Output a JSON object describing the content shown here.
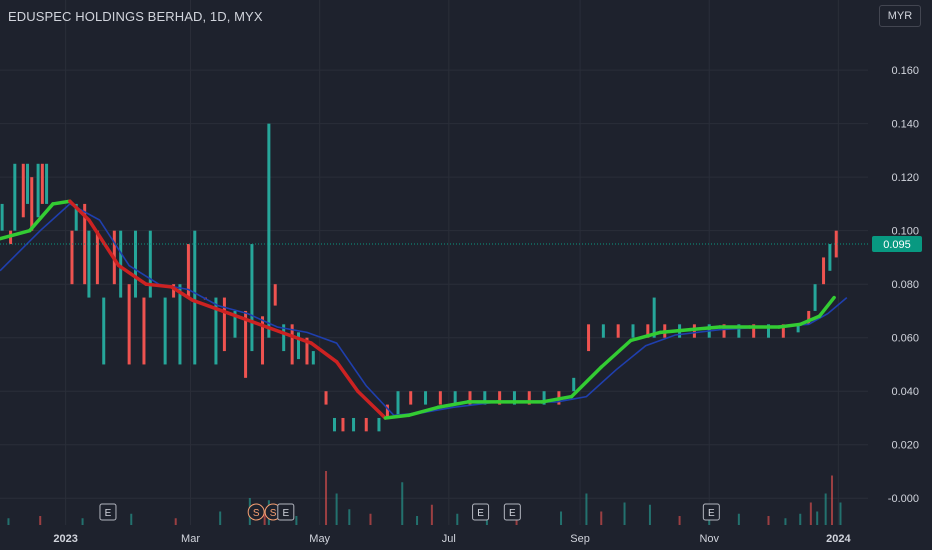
{
  "header": {
    "title": "EDUSPEC HOLDINGS BERHAD, 1D, MYX",
    "currency": "MYR"
  },
  "colors": {
    "background": "#1e222d",
    "grid": "#2a2e39",
    "up": "#26a69a",
    "down": "#ef5350",
    "ma_up": "#33cc33",
    "ma_down": "#cc2222",
    "signal": "#1f3fae",
    "price_badge": "#089981",
    "axis_text": "#d1d4dc"
  },
  "chart_data": {
    "type": "line",
    "title": "EDUSPEC HOLDINGS BERHAD, 1D, MYX",
    "x_axis": {
      "ticks": [
        "2023",
        "Mar",
        "May",
        "Jul",
        "Sep",
        "Nov",
        "2024"
      ],
      "range": [
        "2022-12-01",
        "2024-01-15"
      ]
    },
    "y_axis": {
      "ticks": [
        "0.160",
        "0.140",
        "0.120",
        "0.100",
        "0.080",
        "0.060",
        "0.040",
        "0.020",
        "-0.000"
      ],
      "range": [
        -0.01,
        0.175
      ],
      "position": "right"
    },
    "last_price": "0.095",
    "series": [
      {
        "role": "moving_average",
        "color_rule": "green rising, red falling",
        "points": [
          [
            "2022-12-01",
            0.097
          ],
          [
            "2022-12-15",
            0.1
          ],
          [
            "2022-12-26",
            0.11
          ],
          [
            "2023-01-03",
            0.111
          ],
          [
            "2023-01-12",
            0.104
          ],
          [
            "2023-01-26",
            0.087
          ],
          [
            "2023-02-08",
            0.08
          ],
          [
            "2023-02-20",
            0.079
          ],
          [
            "2023-03-02",
            0.074
          ],
          [
            "2023-03-16",
            0.07
          ],
          [
            "2023-03-30",
            0.066
          ],
          [
            "2023-04-13",
            0.062
          ],
          [
            "2023-04-27",
            0.058
          ],
          [
            "2023-05-09",
            0.051
          ],
          [
            "2023-05-19",
            0.04
          ],
          [
            "2023-06-01",
            0.03
          ],
          [
            "2023-06-12",
            0.031
          ],
          [
            "2023-06-26",
            0.034
          ],
          [
            "2023-07-10",
            0.036
          ],
          [
            "2023-07-24",
            0.036
          ],
          [
            "2023-08-14",
            0.036
          ],
          [
            "2023-08-28",
            0.038
          ],
          [
            "2023-09-11",
            0.049
          ],
          [
            "2023-09-25",
            0.059
          ],
          [
            "2023-10-09",
            0.062
          ],
          [
            "2023-10-23",
            0.063
          ],
          [
            "2023-11-06",
            0.064
          ],
          [
            "2023-11-20",
            0.064
          ],
          [
            "2023-12-04",
            0.064
          ],
          [
            "2023-12-14",
            0.065
          ],
          [
            "2023-12-23",
            0.068
          ],
          [
            "2023-12-30",
            0.075
          ]
        ]
      },
      {
        "role": "signal_line",
        "color": "#1f3fae",
        "points": [
          [
            "2022-12-01",
            0.085
          ],
          [
            "2022-12-20",
            0.1
          ],
          [
            "2023-01-03",
            0.11
          ],
          [
            "2023-01-17",
            0.104
          ],
          [
            "2023-01-31",
            0.087
          ],
          [
            "2023-02-14",
            0.08
          ],
          [
            "2023-02-28",
            0.078
          ],
          [
            "2023-03-14",
            0.072
          ],
          [
            "2023-03-28",
            0.069
          ],
          [
            "2023-04-11",
            0.064
          ],
          [
            "2023-04-25",
            0.062
          ],
          [
            "2023-05-09",
            0.058
          ],
          [
            "2023-05-23",
            0.042
          ],
          [
            "2023-06-05",
            0.031
          ],
          [
            "2023-06-19",
            0.032
          ],
          [
            "2023-07-03",
            0.034
          ],
          [
            "2023-07-24",
            0.036
          ],
          [
            "2023-08-21",
            0.036
          ],
          [
            "2023-09-04",
            0.038
          ],
          [
            "2023-09-18",
            0.048
          ],
          [
            "2023-10-02",
            0.057
          ],
          [
            "2023-10-16",
            0.061
          ],
          [
            "2023-11-06",
            0.063
          ],
          [
            "2023-11-27",
            0.064
          ],
          [
            "2023-12-18",
            0.065
          ],
          [
            "2023-12-27",
            0.069
          ],
          [
            "2024-01-05",
            0.075
          ]
        ]
      }
    ],
    "price_bars": [
      [
        "2022-12-02",
        0.1,
        0.11
      ],
      [
        "2022-12-06",
        0.095,
        0.1
      ],
      [
        "2022-12-08",
        0.1,
        0.125
      ],
      [
        "2022-12-12",
        0.105,
        0.125
      ],
      [
        "2022-12-14",
        0.11,
        0.125
      ],
      [
        "2022-12-16",
        0.1,
        0.12
      ],
      [
        "2022-12-19",
        0.105,
        0.125
      ],
      [
        "2022-12-21",
        0.11,
        0.125
      ],
      [
        "2022-12-23",
        0.11,
        0.125
      ],
      [
        "2023-01-04",
        0.08,
        0.1
      ],
      [
        "2023-01-06",
        0.1,
        0.11
      ],
      [
        "2023-01-10",
        0.08,
        0.11
      ],
      [
        "2023-01-12",
        0.075,
        0.1
      ],
      [
        "2023-01-16",
        0.08,
        0.1
      ],
      [
        "2023-01-19",
        0.05,
        0.075
      ],
      [
        "2023-01-24",
        0.08,
        0.1
      ],
      [
        "2023-01-27",
        0.075,
        0.1
      ],
      [
        "2023-01-31",
        0.05,
        0.08
      ],
      [
        "2023-02-03",
        0.075,
        0.1
      ],
      [
        "2023-02-07",
        0.05,
        0.075
      ],
      [
        "2023-02-10",
        0.075,
        0.1
      ],
      [
        "2023-02-14",
        0.08,
        0.08
      ],
      [
        "2023-02-17",
        0.05,
        0.075
      ],
      [
        "2023-02-21",
        0.075,
        0.08
      ],
      [
        "2023-02-24",
        0.05,
        0.08
      ],
      [
        "2023-02-28",
        0.075,
        0.095
      ],
      [
        "2023-03-03",
        0.05,
        0.1
      ],
      [
        "2023-03-08",
        0.075,
        0.075
      ],
      [
        "2023-03-13",
        0.05,
        0.075
      ],
      [
        "2023-03-17",
        0.055,
        0.075
      ],
      [
        "2023-03-22",
        0.06,
        0.07
      ],
      [
        "2023-03-27",
        0.045,
        0.07
      ],
      [
        "2023-03-30",
        0.055,
        0.095
      ],
      [
        "2023-04-04",
        0.05,
        0.068
      ],
      [
        "2023-04-07",
        0.06,
        0.14
      ],
      [
        "2023-04-10",
        0.072,
        0.08
      ],
      [
        "2023-04-14",
        0.055,
        0.065
      ],
      [
        "2023-04-18",
        0.05,
        0.065
      ],
      [
        "2023-04-21",
        0.052,
        0.062
      ],
      [
        "2023-04-25",
        0.05,
        0.06
      ],
      [
        "2023-04-28",
        0.05,
        0.055
      ],
      [
        "2023-05-04",
        0.035,
        0.04
      ],
      [
        "2023-05-08",
        0.025,
        0.03
      ],
      [
        "2023-05-12",
        0.025,
        0.03
      ],
      [
        "2023-05-17",
        0.025,
        0.03
      ],
      [
        "2023-05-23",
        0.025,
        0.03
      ],
      [
        "2023-05-29",
        0.025,
        0.03
      ],
      [
        "2023-06-02",
        0.03,
        0.035
      ],
      [
        "2023-06-07",
        0.03,
        0.04
      ],
      [
        "2023-06-13",
        0.035,
        0.04
      ],
      [
        "2023-06-20",
        0.035,
        0.04
      ],
      [
        "2023-06-27",
        0.035,
        0.04
      ],
      [
        "2023-07-04",
        0.035,
        0.04
      ],
      [
        "2023-07-11",
        0.035,
        0.04
      ],
      [
        "2023-07-18",
        0.035,
        0.04
      ],
      [
        "2023-07-25",
        0.035,
        0.04
      ],
      [
        "2023-08-01",
        0.035,
        0.04
      ],
      [
        "2023-08-08",
        0.035,
        0.04
      ],
      [
        "2023-08-15",
        0.035,
        0.04
      ],
      [
        "2023-08-22",
        0.035,
        0.04
      ],
      [
        "2023-08-29",
        0.04,
        0.045
      ],
      [
        "2023-09-05",
        0.055,
        0.065
      ],
      [
        "2023-09-12",
        0.06,
        0.065
      ],
      [
        "2023-09-19",
        0.06,
        0.065
      ],
      [
        "2023-09-26",
        0.06,
        0.065
      ],
      [
        "2023-10-03",
        0.06,
        0.065
      ],
      [
        "2023-10-06",
        0.06,
        0.075
      ],
      [
        "2023-10-11",
        0.06,
        0.065
      ],
      [
        "2023-10-18",
        0.06,
        0.065
      ],
      [
        "2023-10-25",
        0.06,
        0.065
      ],
      [
        "2023-11-01",
        0.06,
        0.065
      ],
      [
        "2023-11-08",
        0.06,
        0.065
      ],
      [
        "2023-11-15",
        0.06,
        0.065
      ],
      [
        "2023-11-22",
        0.06,
        0.065
      ],
      [
        "2023-11-29",
        0.06,
        0.065
      ],
      [
        "2023-12-06",
        0.06,
        0.065
      ],
      [
        "2023-12-13",
        0.062,
        0.065
      ],
      [
        "2023-12-18",
        0.065,
        0.07
      ],
      [
        "2023-12-21",
        0.07,
        0.08
      ],
      [
        "2023-12-25",
        0.08,
        0.09
      ],
      [
        "2023-12-28",
        0.085,
        0.095
      ],
      [
        "2023-12-31",
        0.09,
        0.1
      ]
    ],
    "volume_bars": [
      [
        "2022-12-05",
        3
      ],
      [
        "2022-12-20",
        4
      ],
      [
        "2023-01-09",
        3
      ],
      [
        "2023-02-01",
        5
      ],
      [
        "2023-02-22",
        3
      ],
      [
        "2023-03-15",
        6
      ],
      [
        "2023-03-29",
        12
      ],
      [
        "2023-04-05",
        5
      ],
      [
        "2023-04-07",
        11
      ],
      [
        "2023-04-20",
        4
      ],
      [
        "2023-05-04",
        24
      ],
      [
        "2023-05-09",
        14
      ],
      [
        "2023-05-15",
        7
      ],
      [
        "2023-05-25",
        5
      ],
      [
        "2023-06-09",
        19
      ],
      [
        "2023-06-16",
        4
      ],
      [
        "2023-06-23",
        9
      ],
      [
        "2023-07-05",
        5
      ],
      [
        "2023-07-19",
        3
      ],
      [
        "2023-08-02",
        4
      ],
      [
        "2023-08-23",
        6
      ],
      [
        "2023-09-04",
        14
      ],
      [
        "2023-09-11",
        6
      ],
      [
        "2023-09-22",
        10
      ],
      [
        "2023-10-04",
        9
      ],
      [
        "2023-10-18",
        4
      ],
      [
        "2023-11-01",
        3
      ],
      [
        "2023-11-15",
        5
      ],
      [
        "2023-11-29",
        4
      ],
      [
        "2023-12-07",
        3
      ],
      [
        "2023-12-14",
        5
      ],
      [
        "2023-12-19",
        10
      ],
      [
        "2023-12-22",
        6
      ],
      [
        "2023-12-26",
        14
      ],
      [
        "2023-12-29",
        22
      ],
      [
        "2024-01-02",
        10
      ]
    ],
    "event_markers": [
      {
        "date": "2023-01-21",
        "label": "E"
      },
      {
        "date": "2023-04-01",
        "label": "S"
      },
      {
        "date": "2023-04-09",
        "label": "S"
      },
      {
        "date": "2023-04-15",
        "label": "E"
      },
      {
        "date": "2023-07-16",
        "label": "E"
      },
      {
        "date": "2023-07-31",
        "label": "E"
      },
      {
        "date": "2023-11-02",
        "label": "E"
      }
    ],
    "grid": true
  }
}
